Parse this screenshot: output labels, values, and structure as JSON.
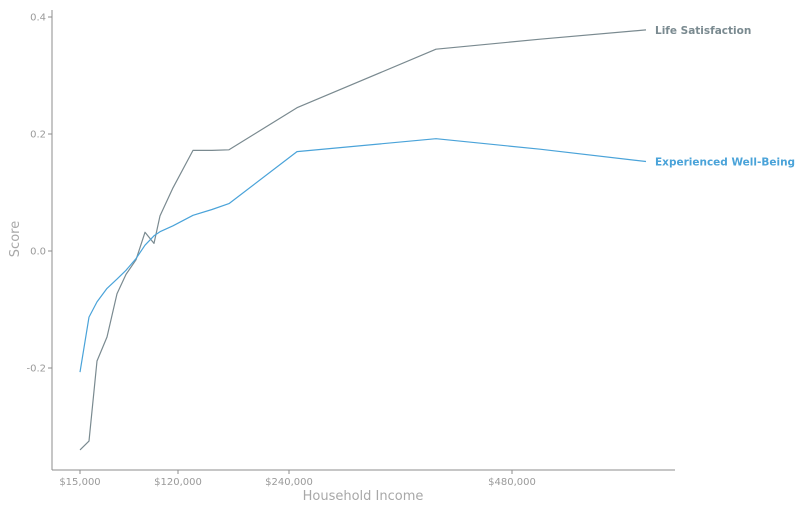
{
  "chart_data": {
    "type": "line",
    "xlabel": "Household Income",
    "ylabel": "Score",
    "x_scale": "log",
    "xlim": [
      15000,
      1000000
    ],
    "ylim": [
      -0.37,
      0.415
    ],
    "x_ticks": [
      {
        "value": 15000,
        "label": "$15,000"
      },
      {
        "value": 120000,
        "label": "$120,000"
      },
      {
        "value": 240000,
        "label": "$240,000"
      },
      {
        "value": 480000,
        "label": "$480,000"
      }
    ],
    "y_ticks": [
      {
        "value": 0.4,
        "label": "0.4"
      },
      {
        "value": 0.2,
        "label": "0.2"
      },
      {
        "value": 0.0,
        "label": "0.0"
      },
      {
        "value": -0.2,
        "label": "-0.2"
      }
    ],
    "grid": false,
    "legend": "direct labels at line ends",
    "series": [
      {
        "name": "Life Satisfaction",
        "color": "#7a8a90",
        "x": [
          15000,
          17500,
          20000,
          22500,
          27500,
          32500,
          40000,
          50000,
          62500,
          75000,
          87500,
          112500,
          137500,
          175000,
          250000,
          400000,
          625000,
          1000000
        ],
        "y": [
          -0.34,
          -0.325,
          -0.188,
          -0.147,
          -0.073,
          -0.04,
          -0.015,
          0.032,
          0.013,
          0.06,
          0.108,
          0.172,
          0.172,
          0.173,
          0.245,
          0.345,
          0.362,
          0.378
        ]
      },
      {
        "name": "Experienced Well-Being",
        "color": "#4aa3d9",
        "x": [
          15000,
          17500,
          20000,
          22500,
          27500,
          32500,
          40000,
          50000,
          62500,
          75000,
          87500,
          112500,
          137500,
          175000,
          250000,
          400000,
          625000,
          1000000
        ],
        "y": [
          -0.207,
          -0.113,
          -0.087,
          -0.064,
          -0.048,
          -0.033,
          -0.013,
          0.01,
          0.026,
          0.033,
          0.043,
          0.061,
          0.071,
          0.081,
          0.17,
          0.192,
          0.174,
          0.153
        ]
      }
    ]
  }
}
